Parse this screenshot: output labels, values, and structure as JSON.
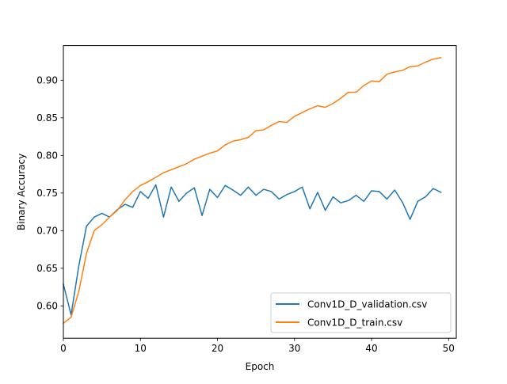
{
  "chart_data": {
    "type": "line",
    "title": "",
    "xlabel": "Epoch",
    "ylabel": "Binary Accuracy",
    "xlim": [
      0,
      51
    ],
    "ylim": [
      0.557,
      0.946
    ],
    "x_ticks": [
      0,
      10,
      20,
      30,
      40,
      50
    ],
    "y_ticks": [
      0.6,
      0.65,
      0.7,
      0.75,
      0.8,
      0.85,
      0.9
    ],
    "grid": false,
    "legend_position": "lower-right",
    "x": [
      0,
      1,
      2,
      3,
      4,
      5,
      6,
      7,
      8,
      9,
      10,
      11,
      12,
      13,
      14,
      15,
      16,
      17,
      18,
      19,
      20,
      21,
      22,
      23,
      24,
      25,
      26,
      27,
      28,
      29,
      30,
      31,
      32,
      33,
      34,
      35,
      36,
      37,
      38,
      39,
      40,
      41,
      42,
      43,
      44,
      45,
      46,
      47,
      48,
      49
    ],
    "series": [
      {
        "name": "Conv1D_D_validation.csv",
        "color": "#1f77b4",
        "values": [
          0.629,
          0.588,
          0.653,
          0.706,
          0.718,
          0.723,
          0.718,
          0.728,
          0.735,
          0.731,
          0.752,
          0.743,
          0.761,
          0.718,
          0.758,
          0.739,
          0.75,
          0.757,
          0.72,
          0.755,
          0.744,
          0.76,
          0.754,
          0.747,
          0.758,
          0.747,
          0.755,
          0.752,
          0.742,
          0.748,
          0.752,
          0.758,
          0.729,
          0.751,
          0.727,
          0.745,
          0.737,
          0.74,
          0.747,
          0.739,
          0.753,
          0.752,
          0.742,
          0.754,
          0.738,
          0.715,
          0.739,
          0.745,
          0.756,
          0.751
        ]
      },
      {
        "name": "Conv1D_D_train.csv",
        "color": "#ff7f0e",
        "values": [
          0.577,
          0.585,
          0.619,
          0.67,
          0.7,
          0.708,
          0.718,
          0.727,
          0.741,
          0.752,
          0.76,
          0.765,
          0.771,
          0.777,
          0.781,
          0.785,
          0.789,
          0.795,
          0.799,
          0.803,
          0.806,
          0.814,
          0.819,
          0.821,
          0.824,
          0.833,
          0.834,
          0.84,
          0.845,
          0.844,
          0.852,
          0.857,
          0.862,
          0.866,
          0.864,
          0.869,
          0.876,
          0.884,
          0.884,
          0.893,
          0.899,
          0.898,
          0.908,
          0.911,
          0.913,
          0.918,
          0.919,
          0.924,
          0.928,
          0.93
        ]
      }
    ]
  }
}
